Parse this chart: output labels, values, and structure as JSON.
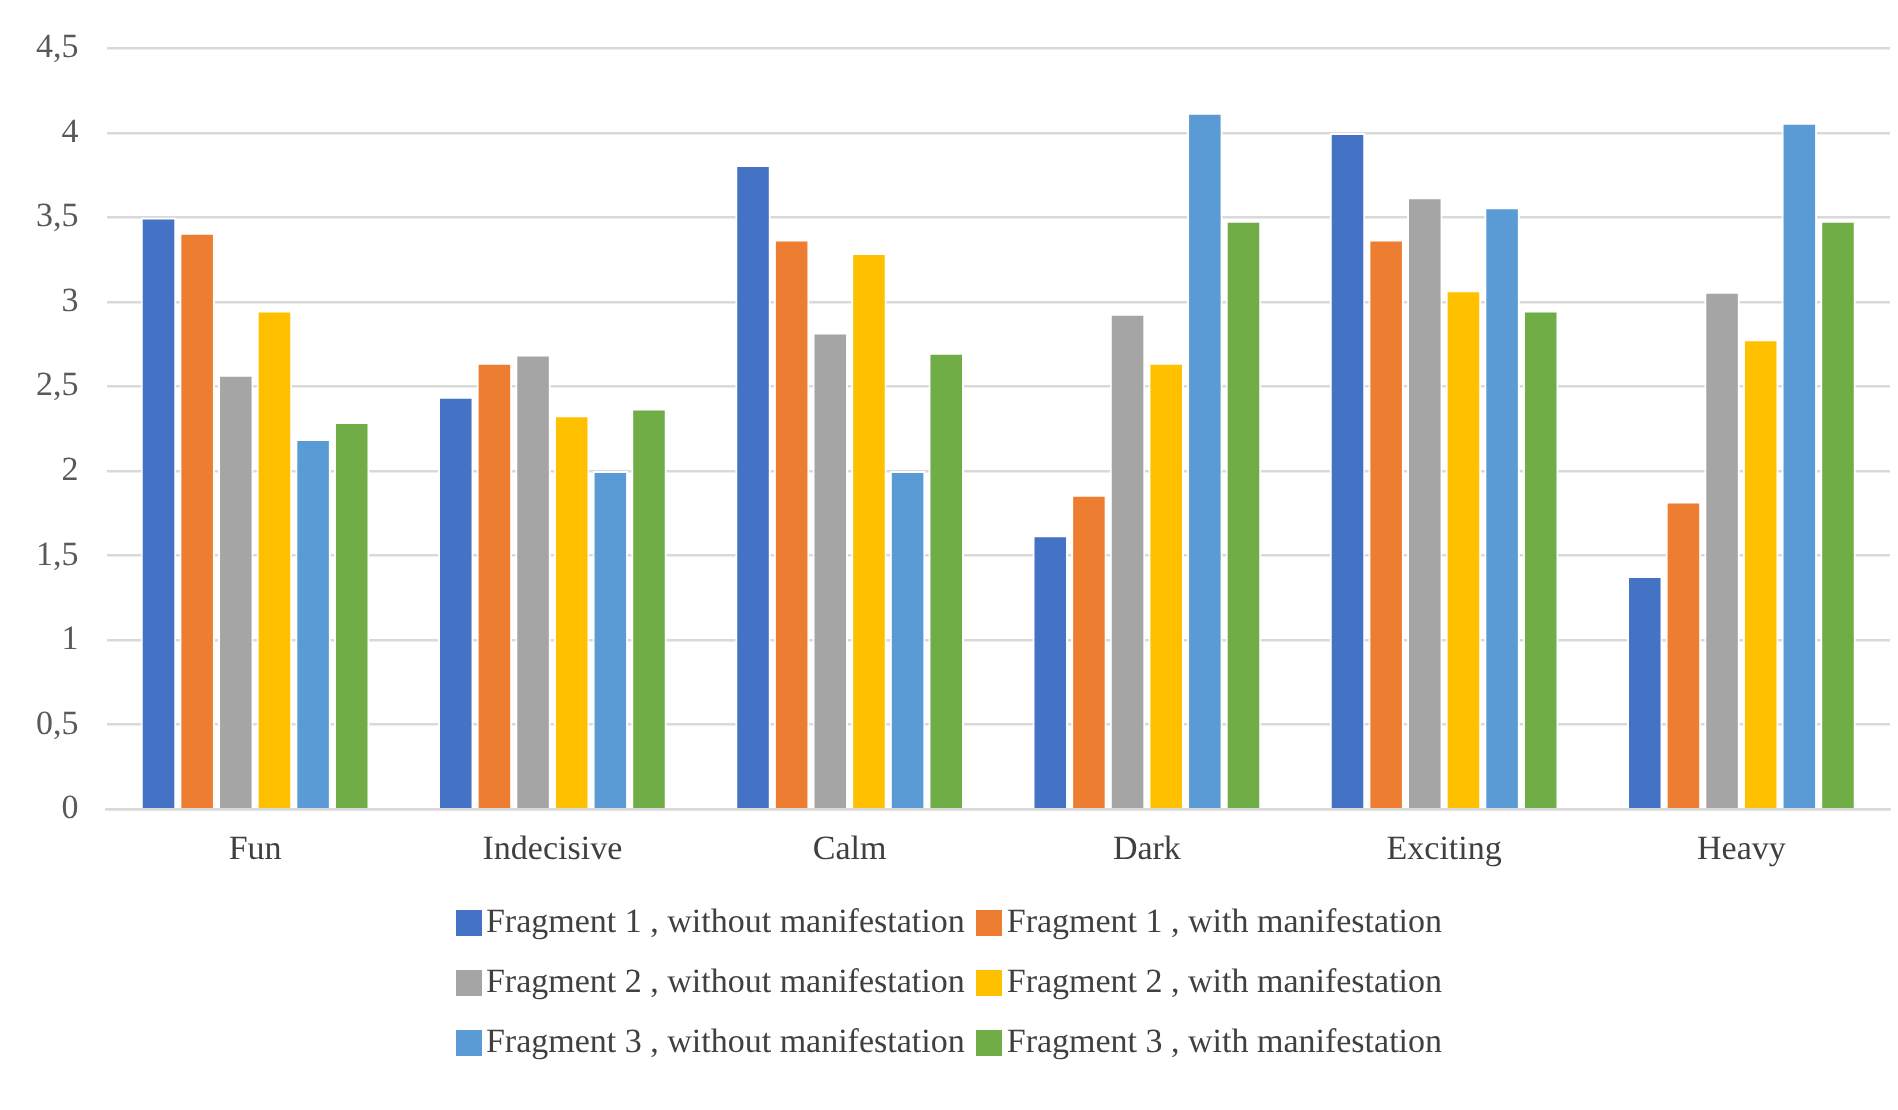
{
  "chart_data": {
    "type": "bar",
    "categories": [
      "Fun",
      "Indecisive",
      "Calm",
      "Dark",
      "Exciting",
      "Heavy"
    ],
    "series": [
      {
        "name": "Fragment 1 , without manifestation",
        "color": "#4472c4",
        "values": [
          3.5,
          2.44,
          3.81,
          1.62,
          4.0,
          1.38
        ]
      },
      {
        "name": "Fragment 1 , with manifestation",
        "color": "#ed7d31",
        "values": [
          3.41,
          2.64,
          3.37,
          1.86,
          3.37,
          1.82
        ]
      },
      {
        "name": "Fragment 2 , without manifestation",
        "color": "#a5a5a5",
        "values": [
          2.57,
          2.69,
          2.82,
          2.93,
          3.62,
          3.06
        ]
      },
      {
        "name": "Fragment 2 , with manifestation",
        "color": "#ffc000",
        "values": [
          2.95,
          2.33,
          3.29,
          2.64,
          3.07,
          2.78
        ]
      },
      {
        "name": "Fragment 3 , without manifestation",
        "color": "#5b9bd5",
        "values": [
          2.19,
          2.0,
          2.0,
          4.12,
          3.56,
          4.06
        ]
      },
      {
        "name": "Fragment 3 , with manifestation",
        "color": "#70ad47",
        "values": [
          2.29,
          2.37,
          2.7,
          3.48,
          2.95,
          3.48
        ]
      }
    ],
    "ylim": [
      0,
      4.5
    ],
    "yticks": [
      0,
      {
        "value": 0.5,
        "label": "0,5"
      },
      1,
      {
        "value": 1.5,
        "label": "1,5"
      },
      2,
      {
        "value": 2.5,
        "label": "2,5"
      },
      3,
      {
        "value": 3.5,
        "label": "3,5"
      },
      4,
      {
        "value": 4.5,
        "label": "4,5"
      }
    ],
    "grid": "y",
    "legend": "bottom"
  }
}
